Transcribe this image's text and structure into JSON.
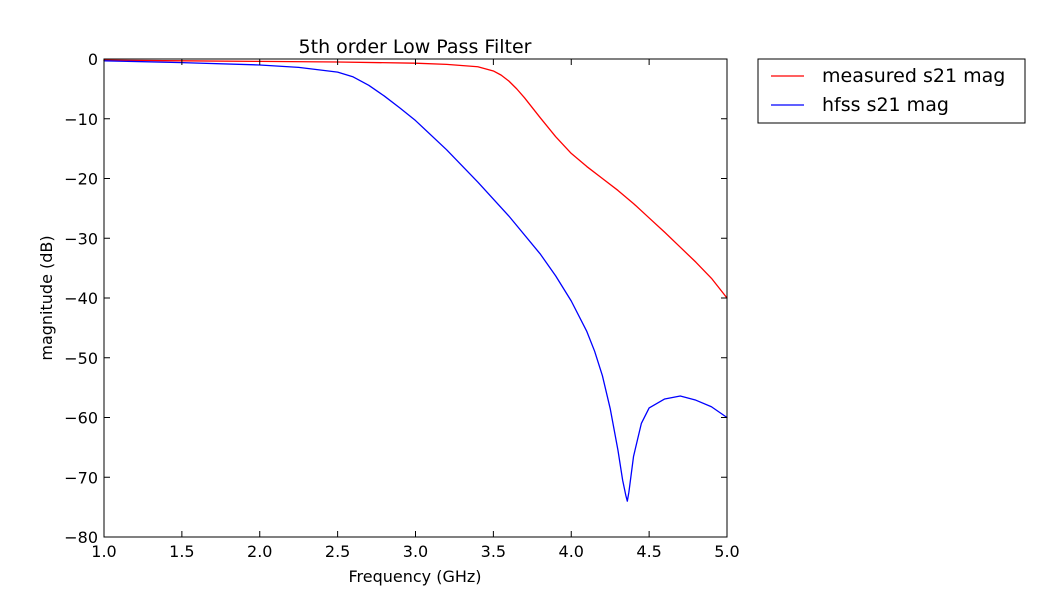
{
  "chart_data": {
    "type": "line",
    "title": "5th order Low Pass Filter",
    "xlabel": "Frequency (GHz)",
    "ylabel": "magnitude (dB)",
    "xlim": [
      1.0,
      5.0
    ],
    "ylim": [
      -80,
      0
    ],
    "xticks": [
      1.0,
      1.5,
      2.0,
      2.5,
      3.0,
      3.5,
      4.0,
      4.5,
      5.0
    ],
    "xtick_labels": [
      "1.0",
      "1.5",
      "2.0",
      "2.5",
      "3.0",
      "3.5",
      "4.0",
      "4.5",
      "5.0"
    ],
    "yticks": [
      0,
      -10,
      -20,
      -30,
      -40,
      -50,
      -60,
      -70,
      -80
    ],
    "ytick_labels": [
      "0",
      "−10",
      "−20",
      "−30",
      "−40",
      "−50",
      "−60",
      "−70",
      "−80"
    ],
    "grid": false,
    "legend_position": "outside-top-right",
    "series": [
      {
        "name": "measured s21 mag",
        "color": "#ff0000",
        "x": [
          1.0,
          1.5,
          2.0,
          2.5,
          3.0,
          3.2,
          3.4,
          3.5,
          3.55,
          3.6,
          3.65,
          3.7,
          3.8,
          3.9,
          4.0,
          4.1,
          4.2,
          4.3,
          4.4,
          4.5,
          4.6,
          4.7,
          4.8,
          4.9,
          5.0
        ],
        "y": [
          -0.2,
          -0.3,
          -0.4,
          -0.5,
          -0.7,
          -0.9,
          -1.3,
          -2.0,
          -2.7,
          -3.7,
          -5.0,
          -6.5,
          -9.8,
          -13.0,
          -15.8,
          -18.0,
          -20.0,
          -22.0,
          -24.2,
          -26.6,
          -29.0,
          -31.5,
          -34.0,
          -36.7,
          -40.0
        ]
      },
      {
        "name": "hfss s21 mag",
        "color": "#0000ff",
        "x": [
          1.0,
          1.5,
          2.0,
          2.25,
          2.5,
          2.6,
          2.7,
          2.8,
          2.9,
          3.0,
          3.2,
          3.4,
          3.6,
          3.8,
          3.9,
          4.0,
          4.1,
          4.15,
          4.2,
          4.25,
          4.3,
          4.33,
          4.35,
          4.36,
          4.37,
          4.4,
          4.45,
          4.5,
          4.6,
          4.7,
          4.8,
          4.9,
          5.0
        ],
        "y": [
          -0.3,
          -0.6,
          -1.0,
          -1.4,
          -2.2,
          -3.0,
          -4.4,
          -6.2,
          -8.2,
          -10.3,
          -15.2,
          -20.6,
          -26.3,
          -32.6,
          -36.3,
          -40.5,
          -45.6,
          -48.9,
          -53.0,
          -58.5,
          -65.5,
          -70.5,
          -73.0,
          -74.0,
          -72.5,
          -66.5,
          -61.0,
          -58.4,
          -56.9,
          -56.4,
          -57.1,
          -58.2,
          -60.0
        ]
      }
    ]
  }
}
